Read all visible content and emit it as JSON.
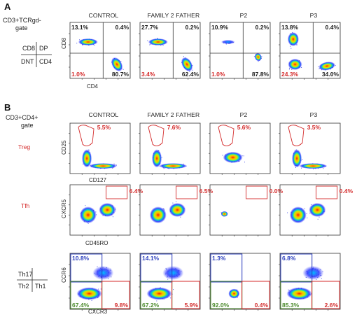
{
  "colors": {
    "black": "#1a1a1a",
    "red": "#d42a2a",
    "blue": "#2b3fbf",
    "green": "#4a8a2a",
    "purple": "#3a2f8c"
  },
  "panel_a": {
    "label": "A",
    "gate": [
      "CD3+TCRgd-",
      "gate"
    ],
    "legend": {
      "tl": "CD8",
      "tr": "DP",
      "bl": "DNT",
      "br": "CD4"
    }
  },
  "panel_b": {
    "label": "B",
    "gate": [
      "CD3+CD4+",
      "gate"
    ],
    "legend": {
      "tl": "Th17",
      "bl": "Th2",
      "br": "Th1"
    }
  },
  "columns": [
    "CONTROL",
    "FAMILY 2 FATHER",
    "P2",
    "P3"
  ],
  "rows": [
    {
      "key": "cd4cd8",
      "xlabel": "CD4",
      "ylabel": "CD8",
      "row_label": ""
    },
    {
      "key": "treg",
      "xlabel": "CD127",
      "ylabel": "CD25",
      "row_label": "Treg"
    },
    {
      "key": "tfh",
      "xlabel": "CD45RO",
      "ylabel": "CXCR5",
      "row_label": "Tfh"
    },
    {
      "key": "th",
      "xlabel": "CXCR3",
      "ylabel": "CCR6",
      "row_label": ""
    }
  ],
  "chart_data": {
    "type": "scatter",
    "description_free": true,
    "panels": [
      {
        "row": "cd4cd8",
        "values": [
          {
            "column": "CONTROL",
            "CD8": "13.1%",
            "DP": "0.4%",
            "DNT": "1.0%",
            "CD4": "80.7%"
          },
          {
            "column": "FAMILY 2 FATHER",
            "CD8": "27.7%",
            "DP": "0.2%",
            "DNT": "3.4%",
            "CD4": "62.4%"
          },
          {
            "column": "P2",
            "CD8": "10.9%",
            "DP": "0.2%",
            "DNT": "1.0%",
            "CD4": "87.8%"
          },
          {
            "column": "P3",
            "CD8": "13.8%",
            "DP": "0.4%",
            "DNT": "24.3%",
            "CD4": "34.0%"
          }
        ]
      },
      {
        "row": "treg",
        "values": [
          {
            "column": "CONTROL",
            "Treg": "5.5%"
          },
          {
            "column": "FAMILY 2 FATHER",
            "Treg": "7.6%"
          },
          {
            "column": "P2",
            "Treg": "5.6%"
          },
          {
            "column": "P3",
            "Treg": "3.5%"
          }
        ]
      },
      {
        "row": "tfh",
        "values": [
          {
            "column": "CONTROL",
            "Tfh": "6.4%"
          },
          {
            "column": "FAMILY 2 FATHER",
            "Tfh": "6.5%"
          },
          {
            "column": "P2",
            "Tfh": "0.0%"
          },
          {
            "column": "P3",
            "Tfh": "0.4%"
          }
        ]
      },
      {
        "row": "th",
        "values": [
          {
            "column": "CONTROL",
            "Th17": "10.8%",
            "Th2": "67.4%",
            "Th1": "9.8%"
          },
          {
            "column": "FAMILY 2 FATHER",
            "Th17": "14.1%",
            "Th2": "67.2%",
            "Th1": "5.9%"
          },
          {
            "column": "P2",
            "Th17": "1.3%",
            "Th2": "92.0%",
            "Th1": "0.4%"
          },
          {
            "column": "P3",
            "Th17": "6.8%",
            "Th2": "85.3%",
            "Th1": "2.6%"
          }
        ]
      }
    ]
  }
}
